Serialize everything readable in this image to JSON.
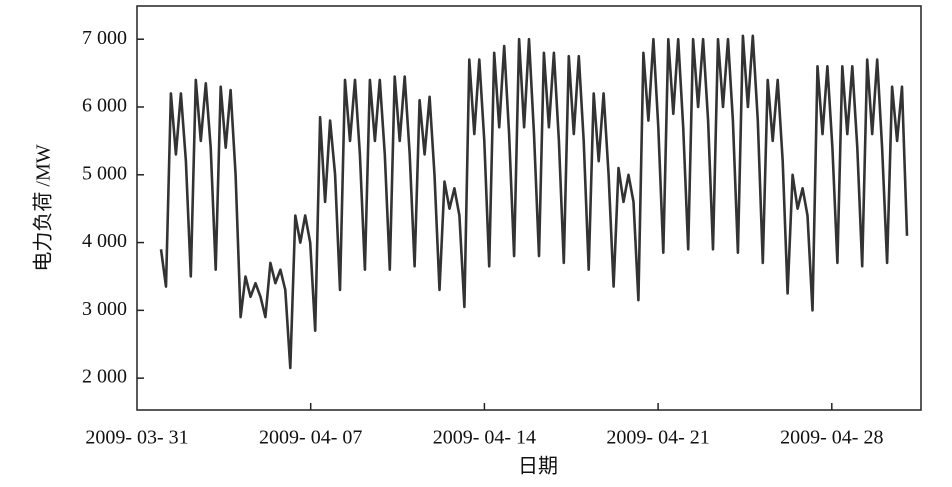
{
  "chart_data": {
    "type": "line",
    "x_label": "日期",
    "y_label": "电力负荷 /MW",
    "xticks": [
      "2009- 03- 31",
      "2009- 04- 07",
      "2009- 04- 14",
      "2009- 04- 21",
      "2009- 04- 28"
    ],
    "ylim": [
      1530,
      7490
    ],
    "yticks": [
      {
        "value": 2000,
        "label": "2 000"
      },
      {
        "value": 3000,
        "label": "3 000"
      },
      {
        "value": 4000,
        "label": "4 000"
      },
      {
        "value": 5000,
        "label": "5 000"
      },
      {
        "value": 6000,
        "label": "6 000"
      },
      {
        "value": 7000,
        "label": "7 000"
      }
    ],
    "color": "#333333",
    "values": [
      3900,
      3350,
      6200,
      5300,
      6200,
      5200,
      3500,
      6400,
      5500,
      6350,
      5400,
      3600,
      6300,
      5400,
      6250,
      5000,
      2900,
      3500,
      3200,
      3400,
      3200,
      2900,
      3700,
      3400,
      3600,
      3300,
      2150,
      4400,
      4000,
      4400,
      4000,
      2700,
      5850,
      4600,
      5800,
      5000,
      3300,
      6400,
      5500,
      6400,
      5300,
      3600,
      6400,
      5500,
      6400,
      5300,
      3600,
      6450,
      5500,
      6450,
      5300,
      3650,
      6100,
      5300,
      6150,
      5000,
      3300,
      4900,
      4500,
      4800,
      4400,
      3050,
      6700,
      5600,
      6700,
      5500,
      3650,
      6800,
      5700,
      6900,
      5600,
      3800,
      7000,
      5700,
      7000,
      5600,
      3800,
      6800,
      5700,
      6800,
      5500,
      3700,
      6750,
      5600,
      6750,
      5500,
      3600,
      6200,
      5200,
      6200,
      5000,
      3350,
      5100,
      4600,
      5000,
      4600,
      3150,
      6800,
      5800,
      7000,
      5700,
      3850,
      7000,
      5900,
      7000,
      5700,
      3900,
      7000,
      6000,
      7000,
      5800,
      3900,
      7000,
      6000,
      7000,
      5800,
      3850,
      7050,
      6000,
      7050,
      5800,
      3700,
      6400,
      5500,
      6400,
      5200,
      3250,
      5000,
      4500,
      4800,
      4400,
      3000,
      6600,
      5600,
      6600,
      5400,
      3700,
      6600,
      5600,
      6600,
      5400,
      3650,
      6700,
      5600,
      6700,
      5400,
      3700,
      6300,
      5500,
      6300,
      4100
    ]
  }
}
